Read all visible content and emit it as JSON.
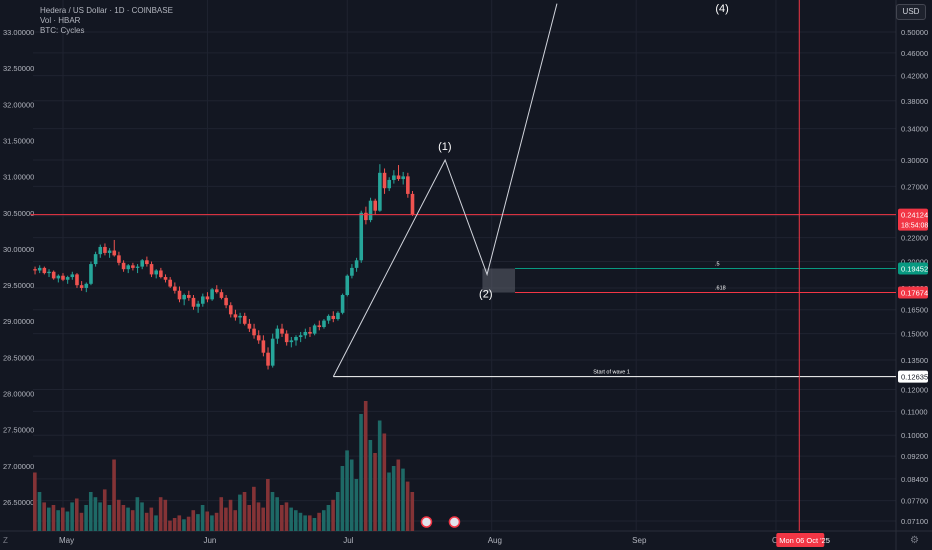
{
  "header": {
    "title": "Hedera / US Dollar · 1D · COINBASE",
    "volume_label": "Vol · HBAR",
    "cycles_label": "BTC: Cycles"
  },
  "currency_button": "USD",
  "zoom_label": "Z",
  "settings_icon": "gear-icon",
  "colors": {
    "background": "#131722",
    "bull": "#26a69a",
    "bear": "#ef5350",
    "grid": "#1f2330",
    "axis_text": "#b2b5be",
    "drawing": "#d1d4dc",
    "red_line": "#f23645",
    "green_line": "#089981"
  },
  "chart_data": {
    "type": "candlestick",
    "symbol": "HBAR/USD",
    "timeframe": "1D",
    "left_axis": {
      "ticks": [
        "33.00000",
        "32.50000",
        "32.00000",
        "31.50000",
        "31.00000",
        "30.50000",
        "30.00000",
        "29.50000",
        "29.00000",
        "28.50000",
        "28.00000",
        "27.50000",
        "27.00000",
        "26.50000"
      ],
      "values": [
        33.0,
        32.5,
        32.0,
        31.5,
        31.0,
        30.5,
        30.0,
        29.5,
        29.0,
        28.5,
        28.0,
        27.5,
        27.0,
        26.5
      ]
    },
    "right_axis": {
      "scale": "log",
      "ticks": [
        "0.50000",
        "0.46000",
        "0.42000",
        "0.38000",
        "0.34000",
        "0.30000",
        "0.27000",
        "0.24000",
        "0.22000",
        "0.20000",
        "0.18000",
        "0.16500",
        "0.15000",
        "0.13500",
        "0.12000",
        "0.11000",
        "0.10000",
        "0.09200",
        "0.08400",
        "0.07700",
        "0.07100"
      ],
      "values": [
        0.5,
        0.46,
        0.42,
        0.38,
        0.34,
        0.3,
        0.27,
        0.24,
        0.22,
        0.2,
        0.18,
        0.165,
        0.15,
        0.135,
        0.12,
        0.11,
        0.1,
        0.092,
        0.084,
        0.077,
        0.071
      ]
    },
    "x_axis": {
      "ticks": [
        "May",
        "Jun",
        "Jul",
        "Aug",
        "Sep",
        "O"
      ],
      "day_index": [
        0,
        31,
        61,
        92,
        123,
        153
      ]
    },
    "price_tags": [
      {
        "label": "0.24124",
        "sub": "18:54:08",
        "value": 0.24124,
        "color": "#f23645"
      },
      {
        "label": "0.19452",
        "value": 0.19452,
        "color": "#089981"
      },
      {
        "label": "0.17674",
        "value": 0.17674,
        "color": "#f23645"
      },
      {
        "label": "0.12635",
        "value": 0.12635,
        "color": "#ffffff"
      }
    ],
    "date_tag": {
      "label": "Mon 06 Oct '25",
      "day_index": 158
    },
    "levels": [
      {
        "name": "current-price-line",
        "value": 0.24124,
        "from_day": -7,
        "color": "#f23645",
        "label": ""
      },
      {
        "name": "fib-0.5-line",
        "value": 0.19452,
        "from_day": 97,
        "color": "#089981",
        "label": ".5"
      },
      {
        "name": "fib-0.618-line",
        "value": 0.17674,
        "from_day": 97,
        "color": "#f23645",
        "label": ".618"
      },
      {
        "name": "start-of-wave-1-line",
        "value": 0.12635,
        "from_day": 58,
        "color": "#ffffff",
        "label": "Start of wave 1"
      }
    ],
    "wave_labels": [
      "(1)",
      "(2)",
      "(4)"
    ],
    "wave_path": [
      {
        "day": 58,
        "price": 0.12635
      },
      {
        "day": 82,
        "price": 0.3
      },
      {
        "day": 91,
        "price": 0.19
      },
      {
        "day": 106,
        "price": 0.56
      }
    ],
    "fib_box": {
      "day_from": 90,
      "day_to": 97,
      "price_top": 0.19452,
      "price_bottom": 0.17674
    },
    "candles": [
      [
        0.194,
        0.196,
        0.19,
        0.193
      ],
      [
        0.193,
        0.197,
        0.191,
        0.195
      ],
      [
        0.195,
        0.196,
        0.19,
        0.191
      ],
      [
        0.191,
        0.194,
        0.188,
        0.192
      ],
      [
        0.192,
        0.193,
        0.186,
        0.187
      ],
      [
        0.187,
        0.19,
        0.184,
        0.189
      ],
      [
        0.189,
        0.191,
        0.185,
        0.186
      ],
      [
        0.186,
        0.189,
        0.183,
        0.188
      ],
      [
        0.188,
        0.192,
        0.186,
        0.19
      ],
      [
        0.19,
        0.191,
        0.18,
        0.182
      ],
      [
        0.182,
        0.185,
        0.178,
        0.18
      ],
      [
        0.18,
        0.184,
        0.177,
        0.183
      ],
      [
        0.183,
        0.2,
        0.182,
        0.198
      ],
      [
        0.198,
        0.208,
        0.196,
        0.206
      ],
      [
        0.206,
        0.214,
        0.203,
        0.212
      ],
      [
        0.212,
        0.215,
        0.205,
        0.207
      ],
      [
        0.207,
        0.211,
        0.203,
        0.209
      ],
      [
        0.209,
        0.218,
        0.204,
        0.205
      ],
      [
        0.205,
        0.208,
        0.197,
        0.199
      ],
      [
        0.199,
        0.201,
        0.192,
        0.194
      ],
      [
        0.194,
        0.198,
        0.191,
        0.197
      ],
      [
        0.197,
        0.199,
        0.193,
        0.195
      ],
      [
        0.195,
        0.198,
        0.191,
        0.196
      ],
      [
        0.196,
        0.202,
        0.194,
        0.201
      ],
      [
        0.201,
        0.204,
        0.196,
        0.198
      ],
      [
        0.198,
        0.2,
        0.188,
        0.19
      ],
      [
        0.19,
        0.194,
        0.187,
        0.193
      ],
      [
        0.193,
        0.195,
        0.187,
        0.188
      ],
      [
        0.188,
        0.19,
        0.184,
        0.186
      ],
      [
        0.186,
        0.188,
        0.18,
        0.181
      ],
      [
        0.181,
        0.184,
        0.176,
        0.178
      ],
      [
        0.178,
        0.181,
        0.17,
        0.172
      ],
      [
        0.172,
        0.176,
        0.168,
        0.175
      ],
      [
        0.175,
        0.178,
        0.171,
        0.173
      ],
      [
        0.173,
        0.175,
        0.165,
        0.167
      ],
      [
        0.167,
        0.171,
        0.163,
        0.169
      ],
      [
        0.169,
        0.176,
        0.167,
        0.174
      ],
      [
        0.174,
        0.177,
        0.17,
        0.172
      ],
      [
        0.172,
        0.18,
        0.171,
        0.179
      ],
      [
        0.179,
        0.182,
        0.176,
        0.177
      ],
      [
        0.177,
        0.179,
        0.172,
        0.173
      ],
      [
        0.173,
        0.175,
        0.166,
        0.168
      ],
      [
        0.168,
        0.17,
        0.16,
        0.162
      ],
      [
        0.162,
        0.165,
        0.158,
        0.16
      ],
      [
        0.16,
        0.163,
        0.156,
        0.161
      ],
      [
        0.161,
        0.163,
        0.155,
        0.156
      ],
      [
        0.156,
        0.159,
        0.151,
        0.153
      ],
      [
        0.153,
        0.156,
        0.147,
        0.149
      ],
      [
        0.149,
        0.152,
        0.144,
        0.146
      ],
      [
        0.146,
        0.149,
        0.137,
        0.139
      ],
      [
        0.139,
        0.142,
        0.13,
        0.132
      ],
      [
        0.132,
        0.15,
        0.131,
        0.147
      ],
      [
        0.147,
        0.155,
        0.144,
        0.153
      ],
      [
        0.153,
        0.156,
        0.148,
        0.15
      ],
      [
        0.15,
        0.152,
        0.143,
        0.145
      ],
      [
        0.145,
        0.148,
        0.142,
        0.146
      ],
      [
        0.146,
        0.149,
        0.143,
        0.148
      ],
      [
        0.148,
        0.151,
        0.145,
        0.149
      ],
      [
        0.149,
        0.153,
        0.147,
        0.151
      ],
      [
        0.151,
        0.154,
        0.148,
        0.15
      ],
      [
        0.15,
        0.156,
        0.149,
        0.155
      ],
      [
        0.155,
        0.158,
        0.152,
        0.154
      ],
      [
        0.154,
        0.159,
        0.153,
        0.158
      ],
      [
        0.158,
        0.162,
        0.156,
        0.161
      ],
      [
        0.161,
        0.164,
        0.157,
        0.159
      ],
      [
        0.159,
        0.164,
        0.158,
        0.163
      ],
      [
        0.163,
        0.176,
        0.162,
        0.175
      ],
      [
        0.175,
        0.19,
        0.174,
        0.189
      ],
      [
        0.189,
        0.198,
        0.187,
        0.195
      ],
      [
        0.195,
        0.203,
        0.192,
        0.201
      ],
      [
        0.201,
        0.245,
        0.199,
        0.243
      ],
      [
        0.243,
        0.249,
        0.232,
        0.236
      ],
      [
        0.236,
        0.258,
        0.234,
        0.255
      ],
      [
        0.255,
        0.257,
        0.241,
        0.245
      ],
      [
        0.245,
        0.295,
        0.244,
        0.285
      ],
      [
        0.285,
        0.29,
        0.262,
        0.268
      ],
      [
        0.268,
        0.28,
        0.265,
        0.277
      ],
      [
        0.277,
        0.288,
        0.273,
        0.282
      ],
      [
        0.282,
        0.294,
        0.276,
        0.278
      ],
      [
        0.278,
        0.286,
        0.272,
        0.281
      ],
      [
        0.281,
        0.285,
        0.258,
        0.262
      ],
      [
        0.262,
        0.265,
        0.24,
        0.24124
      ]
    ],
    "volume": [
      0.45,
      0.3,
      0.22,
      0.18,
      0.2,
      0.16,
      0.18,
      0.15,
      0.22,
      0.25,
      0.14,
      0.2,
      0.3,
      0.26,
      0.22,
      0.32,
      0.2,
      0.55,
      0.24,
      0.2,
      0.18,
      0.16,
      0.26,
      0.22,
      0.14,
      0.18,
      0.12,
      0.26,
      0.24,
      0.08,
      0.1,
      0.12,
      0.09,
      0.11,
      0.16,
      0.13,
      0.2,
      0.15,
      0.12,
      0.14,
      0.26,
      0.18,
      0.24,
      0.16,
      0.28,
      0.3,
      0.2,
      0.34,
      0.22,
      0.18,
      0.4,
      0.3,
      0.26,
      0.2,
      0.22,
      0.18,
      0.16,
      0.14,
      0.12,
      0.12,
      0.1,
      0.14,
      0.16,
      0.2,
      0.24,
      0.3,
      0.5,
      0.62,
      0.55,
      0.4,
      0.9,
      1.0,
      0.7,
      0.6,
      0.85,
      0.75,
      0.45,
      0.5,
      0.55,
      0.48,
      0.38,
      0.3
    ],
    "left_yrange": [
      26.5,
      33.0
    ],
    "right_yrange": [
      0.071,
      0.5
    ]
  }
}
